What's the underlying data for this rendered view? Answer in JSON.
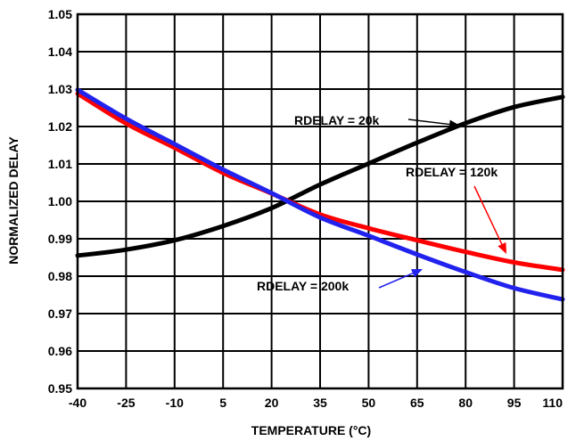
{
  "chart_data": {
    "type": "line",
    "title": "",
    "xlabel": "TEMPERATURE (°C)",
    "ylabel": "NORMALIZED DELAY",
    "xlim": [
      -40,
      110
    ],
    "ylim": [
      0.95,
      1.05
    ],
    "xticks": [
      -40,
      -25,
      -10,
      5,
      20,
      35,
      50,
      65,
      80,
      95,
      110
    ],
    "yticks": [
      0.95,
      0.96,
      0.97,
      0.98,
      0.99,
      1.0,
      1.01,
      1.02,
      1.03,
      1.04,
      1.05
    ],
    "ytick_labels": [
      "0.95",
      "0.96",
      "0.97",
      "0.98",
      "0.99",
      "1.00",
      "1.01",
      "1.02",
      "1.03",
      "1.04",
      "1.05"
    ],
    "grid": true,
    "series": [
      {
        "name": "RDELAY = 20k",
        "color": "#000000",
        "x": [
          -40,
          -25,
          -10,
          5,
          20,
          35,
          50,
          65,
          80,
          95,
          110
        ],
        "y": [
          0.9855,
          0.9871,
          0.9896,
          0.9934,
          0.9982,
          1.0045,
          1.0101,
          1.0157,
          1.0209,
          1.0252,
          1.0279
        ]
      },
      {
        "name": "RDELAY = 120k",
        "color": "#ff0000",
        "x": [
          -40,
          -25,
          -10,
          5,
          20,
          35,
          50,
          65,
          80,
          95,
          110
        ],
        "y": [
          1.0288,
          1.0208,
          1.0143,
          1.0076,
          1.0021,
          0.9965,
          0.9928,
          0.9896,
          0.9865,
          0.9837,
          0.9817
        ]
      },
      {
        "name": "RDELAY = 200k",
        "color": "#2222ee",
        "x": [
          -40,
          -25,
          -10,
          5,
          20,
          35,
          50,
          65,
          80,
          95,
          110
        ],
        "y": [
          1.0298,
          1.0221,
          1.0153,
          1.0085,
          1.0022,
          0.9957,
          0.9908,
          0.9858,
          0.9811,
          0.9768,
          0.9738
        ]
      }
    ],
    "annotations": [
      {
        "text": "RDELAY = 20k",
        "series": 0
      },
      {
        "text": "RDELAY = 120k",
        "series": 1
      },
      {
        "text": "RDELAY = 200k",
        "series": 2
      }
    ]
  }
}
